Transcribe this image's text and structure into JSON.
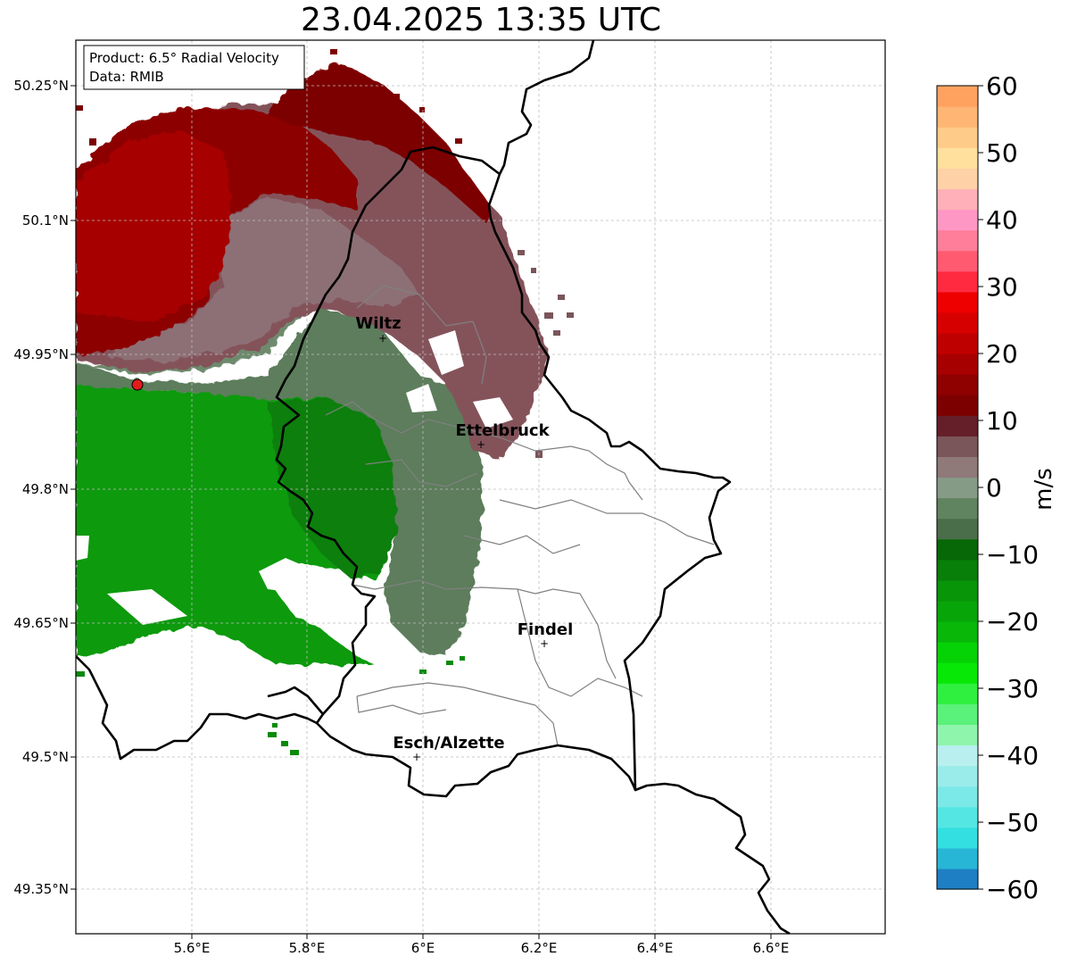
{
  "title": "23.04.2025 13:35 UTC",
  "infobox": {
    "product": "Product: 6.5° Radial Velocity",
    "data": "Data: RMIB"
  },
  "lon_ticks": [
    "5.6°E",
    "5.8°E",
    "6°E",
    "6.2°E",
    "6.4°E",
    "6.6°E"
  ],
  "lat_ticks": [
    "50.25°N",
    "50.1°N",
    "49.95°N",
    "49.8°N",
    "49.65°N",
    "49.5°N",
    "49.35°N"
  ],
  "cities": [
    {
      "name": "Wiltz"
    },
    {
      "name": "Ettelbruck"
    },
    {
      "name": "Findel"
    },
    {
      "name": "Esch/Alzette"
    }
  ],
  "colorbar": {
    "label": "m/s",
    "ticks": [
      "60",
      "50",
      "40",
      "30",
      "20",
      "10",
      "0",
      "−10",
      "−20",
      "−30",
      "−40",
      "−50",
      "−60"
    ],
    "range": [
      -60,
      60
    ],
    "colors": [
      "#1f7fc4",
      "#28b6d6",
      "#33dfe1",
      "#54e6e3",
      "#7be9e8",
      "#9aeceb",
      "#b9efef",
      "#8ef5ad",
      "#5af27a",
      "#2ff03f",
      "#07e807",
      "#06d306",
      "#08b708",
      "#08a508",
      "#089508",
      "#087f08",
      "#066806",
      "#4b6e4a",
      "#608360",
      "#869b86",
      "#8f7979",
      "#7a5559",
      "#651f29",
      "#7d0000",
      "#8f0000",
      "#a70000",
      "#bf0000",
      "#d60000",
      "#ee0000",
      "#ff2a40",
      "#ff5a70",
      "#ff7e9a",
      "#ff97c4",
      "#ffb0b8",
      "#ffd1a6",
      "#ffe09c",
      "#ffcb88",
      "#ffb574",
      "#ffa260"
    ]
  },
  "map_colors": {
    "outbound_strong": "#8c0000",
    "outbound_mid": "#a30000",
    "outbound_weak": "#84535a",
    "near_zero_pos": "#8a6b72",
    "near_zero_neg": "#5d7d5c",
    "inbound_mid": "#0f8a0f",
    "inbound_strong": "#099c09",
    "radar_site": "#e31a1c"
  }
}
